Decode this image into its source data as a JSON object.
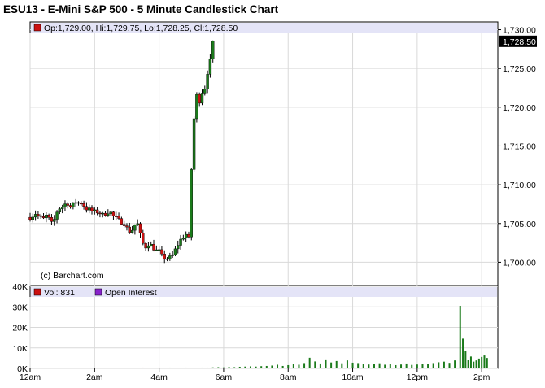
{
  "chart_title": "ESU13 - E-Mini S&P 500 - 5 Minute Candlestick Chart",
  "ohlc_legend": "Op:1,729.00, Hi:1,729.75, Lo:1,728.25, Cl:1,728.50",
  "last_price_label": "1,728.50",
  "watermark": "(c) Barchart.com",
  "volume_legend": "Vol: 831",
  "open_interest_legend": "Open Interest",
  "colors": {
    "up": "#1a7a1a",
    "down": "#cc1111",
    "vol_legend_box": "#cc1111",
    "oi_legend_box": "#8822cc",
    "legend_bar": "#e4e4f7",
    "grid": "#d9d9d9"
  },
  "chart_data": [
    {
      "type": "candlestick",
      "title": "ESU13 - E-Mini S&P 500 - 5 Minute Candlestick Chart",
      "ylim": [
        1697,
        1731
      ],
      "y_ticks": [
        "1,730.00",
        "1,725.00",
        "1,720.00",
        "1,715.00",
        "1,710.00",
        "1,705.00",
        "1,700.00"
      ],
      "y_tick_values": [
        1730,
        1725,
        1720,
        1715,
        1710,
        1705,
        1700
      ],
      "grid": true,
      "last_close": 1728.5,
      "close_path": [
        [
          0,
          1705.8
        ],
        [
          5,
          1706.0
        ],
        [
          10,
          1706.3
        ],
        [
          15,
          1706.0
        ],
        [
          20,
          1705.7
        ],
        [
          25,
          1705.6
        ],
        [
          30,
          1706.0
        ],
        [
          35,
          1705.6
        ],
        [
          40,
          1705.0
        ],
        [
          45,
          1705.5
        ],
        [
          48,
          1705.9
        ],
        [
          52,
          1707.2
        ],
        [
          55,
          1707.0
        ],
        [
          60,
          1707.2
        ],
        [
          65,
          1707.5
        ],
        [
          70,
          1707.6
        ],
        [
          75,
          1707.1
        ],
        [
          80,
          1707.4
        ],
        [
          85,
          1707.8
        ],
        [
          90,
          1707.6
        ],
        [
          95,
          1707.7
        ],
        [
          100,
          1707.3
        ],
        [
          105,
          1706.9
        ],
        [
          110,
          1706.8
        ],
        [
          115,
          1706.6
        ],
        [
          120,
          1706.5
        ],
        [
          125,
          1706.5
        ],
        [
          130,
          1706.4
        ],
        [
          135,
          1706.1
        ],
        [
          140,
          1706.3
        ],
        [
          145,
          1706.5
        ],
        [
          150,
          1706.4
        ],
        [
          155,
          1705.9
        ],
        [
          160,
          1705.7
        ],
        [
          165,
          1705.4
        ],
        [
          170,
          1705.2
        ],
        [
          175,
          1705.0
        ],
        [
          180,
          1704.4
        ],
        [
          185,
          1704.0
        ],
        [
          190,
          1704.2
        ],
        [
          195,
          1704.8
        ],
        [
          200,
          1704.9
        ],
        [
          205,
          1703.5
        ],
        [
          210,
          1702.4
        ],
        [
          215,
          1702.0
        ],
        [
          220,
          1702.4
        ],
        [
          225,
          1702.2
        ],
        [
          230,
          1701.8
        ],
        [
          235,
          1701.5
        ],
        [
          240,
          1701.4
        ],
        [
          245,
          1700.8
        ],
        [
          250,
          1700.6
        ],
        [
          255,
          1700.5
        ],
        [
          260,
          1700.6
        ],
        [
          265,
          1700.9
        ],
        [
          270,
          1701.6
        ],
        [
          275,
          1702.3
        ],
        [
          280,
          1702.9
        ],
        [
          285,
          1703.3
        ],
        [
          290,
          1703.6
        ],
        [
          295,
          1703.0
        ],
        [
          298,
          1702.2
        ],
        [
          300,
          1712.0
        ],
        [
          302,
          1715.8
        ],
        [
          305,
          1718.5
        ],
        [
          310,
          1721.5
        ],
        [
          315,
          1720.8
        ],
        [
          320,
          1722.0
        ],
        [
          322,
          1719.8
        ],
        [
          325,
          1722.5
        ],
        [
          330,
          1724.5
        ],
        [
          335,
          1726.0
        ],
        [
          340,
          1728.5
        ]
      ]
    },
    {
      "type": "bar",
      "title": "Vol: 831",
      "ylim": [
        0,
        40000
      ],
      "y_ticks": [
        "40K",
        "30K",
        "20K",
        "10K",
        "0K"
      ],
      "y_tick_values": [
        40000,
        30000,
        20000,
        10000,
        0
      ],
      "x_tick_labels": [
        "12am",
        "2am",
        "4am",
        "6am",
        "8am",
        "10am",
        "12pm",
        "2pm"
      ],
      "x_tick_minutes": [
        0,
        120,
        240,
        360,
        480,
        600,
        720,
        840
      ],
      "x_range_minutes": [
        0,
        870
      ],
      "volume_minutes": [
        0,
        10,
        20,
        30,
        40,
        50,
        60,
        70,
        80,
        90,
        100,
        110,
        120,
        130,
        140,
        150,
        160,
        170,
        180,
        190,
        200,
        210,
        220,
        230,
        240,
        250,
        260,
        270,
        280,
        290,
        300,
        310,
        320,
        330,
        340,
        350,
        360,
        370,
        380,
        390,
        400,
        410,
        420,
        430,
        440,
        450,
        460,
        470,
        480,
        490,
        500,
        510,
        520,
        530,
        540,
        550,
        560,
        570,
        580,
        590,
        600,
        610,
        620,
        630,
        640,
        650,
        660,
        670,
        680,
        690,
        700,
        710,
        720,
        730,
        740,
        750,
        760,
        770,
        780,
        790,
        800,
        805,
        810,
        815,
        820,
        825,
        830,
        835,
        840,
        845,
        850
      ],
      "volume_values": [
        300,
        200,
        300,
        200,
        300,
        200,
        200,
        300,
        200,
        300,
        200,
        300,
        200,
        200,
        300,
        200,
        300,
        200,
        300,
        200,
        300,
        400,
        300,
        300,
        400,
        300,
        400,
        300,
        300,
        400,
        300,
        300,
        400,
        400,
        500,
        600,
        500,
        700,
        600,
        800,
        900,
        1000,
        900,
        1100,
        1200,
        1400,
        1800,
        1200,
        1600,
        2200,
        1800,
        2600,
        5200,
        3400,
        2400,
        4400,
        2900,
        3600,
        2500,
        3900,
        2800,
        2600,
        2300,
        1900,
        2100,
        2500,
        1800,
        2200,
        1600,
        1900,
        2400,
        1700,
        1900,
        2200,
        2000,
        2600,
        3000,
        3300,
        2700,
        3900,
        30500,
        14500,
        8500,
        4200,
        5800,
        3300,
        3900,
        4800,
        5600,
        6300,
        5100
      ]
    }
  ]
}
